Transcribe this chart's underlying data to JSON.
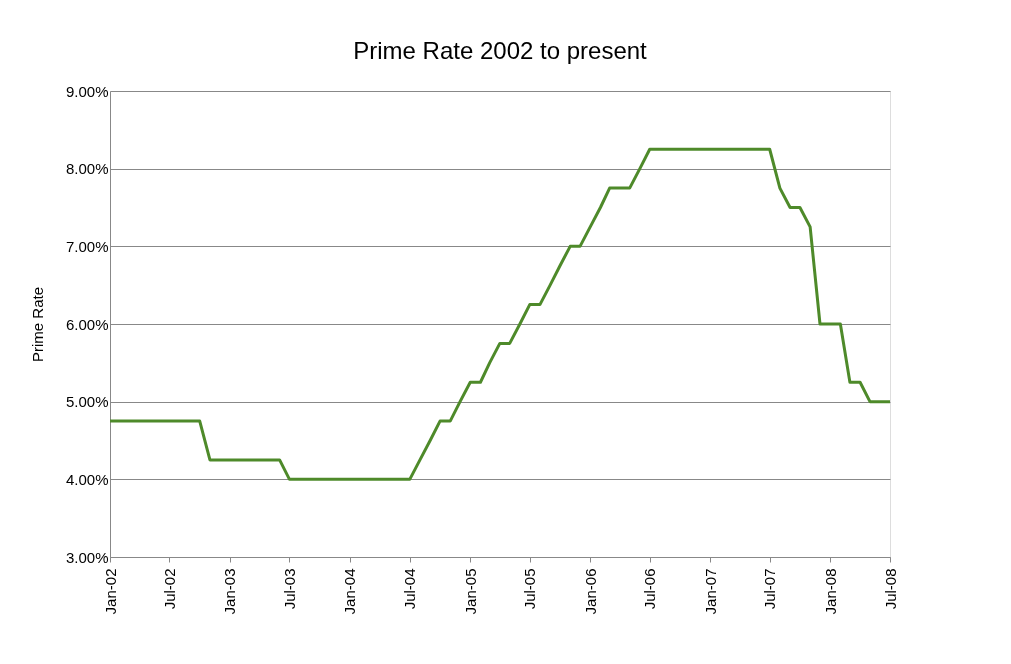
{
  "chart_data": {
    "type": "line",
    "title": "Prime Rate 2002 to present",
    "ylabel": "Prime Rate",
    "x": [
      "2002-01",
      "2002-02",
      "2002-03",
      "2002-04",
      "2002-05",
      "2002-06",
      "2002-07",
      "2002-08",
      "2002-09",
      "2002-10",
      "2002-11",
      "2002-12",
      "2003-01",
      "2003-02",
      "2003-03",
      "2003-04",
      "2003-05",
      "2003-06",
      "2003-07",
      "2003-08",
      "2003-09",
      "2003-10",
      "2003-11",
      "2003-12",
      "2004-01",
      "2004-02",
      "2004-03",
      "2004-04",
      "2004-05",
      "2004-06",
      "2004-07",
      "2004-08",
      "2004-09",
      "2004-10",
      "2004-11",
      "2004-12",
      "2005-01",
      "2005-02",
      "2005-03",
      "2005-04",
      "2005-05",
      "2005-06",
      "2005-07",
      "2005-08",
      "2005-09",
      "2005-10",
      "2005-11",
      "2005-12",
      "2006-01",
      "2006-02",
      "2006-03",
      "2006-04",
      "2006-05",
      "2006-06",
      "2006-07",
      "2006-08",
      "2006-09",
      "2006-10",
      "2006-11",
      "2006-12",
      "2007-01",
      "2007-02",
      "2007-03",
      "2007-04",
      "2007-05",
      "2007-06",
      "2007-07",
      "2007-08",
      "2007-09",
      "2007-10",
      "2007-11",
      "2007-12",
      "2008-01",
      "2008-02",
      "2008-03",
      "2008-04",
      "2008-05",
      "2008-06",
      "2008-07"
    ],
    "series": [
      {
        "color": "#4e8a2a",
        "values": [
          4.75,
          4.75,
          4.75,
          4.75,
          4.75,
          4.75,
          4.75,
          4.75,
          4.75,
          4.75,
          4.25,
          4.25,
          4.25,
          4.25,
          4.25,
          4.25,
          4.25,
          4.25,
          4.0,
          4.0,
          4.0,
          4.0,
          4.0,
          4.0,
          4.0,
          4.0,
          4.0,
          4.0,
          4.0,
          4.0,
          4.0,
          4.25,
          4.5,
          4.75,
          4.75,
          5.0,
          5.25,
          5.25,
          5.5,
          5.75,
          5.75,
          6.0,
          6.25,
          6.25,
          6.5,
          6.75,
          7.0,
          7.0,
          7.25,
          7.5,
          7.75,
          7.75,
          7.75,
          8.0,
          8.25,
          8.25,
          8.25,
          8.25,
          8.25,
          8.25,
          8.25,
          8.25,
          8.25,
          8.25,
          8.25,
          8.25,
          8.25,
          7.75,
          7.5,
          7.5,
          7.25,
          6.0,
          6.0,
          6.0,
          5.25,
          5.25,
          5.0,
          5.0,
          5.0
        ]
      }
    ],
    "xlim": [
      "2002-01",
      "2008-07"
    ],
    "xticks": [
      {
        "value": "2002-01",
        "label": "Jan-02"
      },
      {
        "value": "2002-07",
        "label": "Jul-02"
      },
      {
        "value": "2003-01",
        "label": "Jan-03"
      },
      {
        "value": "2003-07",
        "label": "Jul-03"
      },
      {
        "value": "2004-01",
        "label": "Jan-04"
      },
      {
        "value": "2004-07",
        "label": "Jul-04"
      },
      {
        "value": "2005-01",
        "label": "Jan-05"
      },
      {
        "value": "2005-07",
        "label": "Jul-05"
      },
      {
        "value": "2006-01",
        "label": "Jan-06"
      },
      {
        "value": "2006-07",
        "label": "Jul-06"
      },
      {
        "value": "2007-01",
        "label": "Jan-07"
      },
      {
        "value": "2007-07",
        "label": "Jul-07"
      },
      {
        "value": "2008-01",
        "label": "Jan-08"
      },
      {
        "value": "2008-07",
        "label": "Jul-08"
      }
    ],
    "ylim": [
      3,
      9
    ],
    "yticks": [
      {
        "value": 3,
        "label": "3.00%"
      },
      {
        "value": 4,
        "label": "4.00%"
      },
      {
        "value": 5,
        "label": "5.00%"
      },
      {
        "value": 6,
        "label": "6.00%"
      },
      {
        "value": 7,
        "label": "7.00%"
      },
      {
        "value": 8,
        "label": "8.00%"
      },
      {
        "value": 9,
        "label": "9.00%"
      }
    ],
    "grid": "y",
    "legend": false,
    "marker": "none",
    "line_style": "solid"
  }
}
